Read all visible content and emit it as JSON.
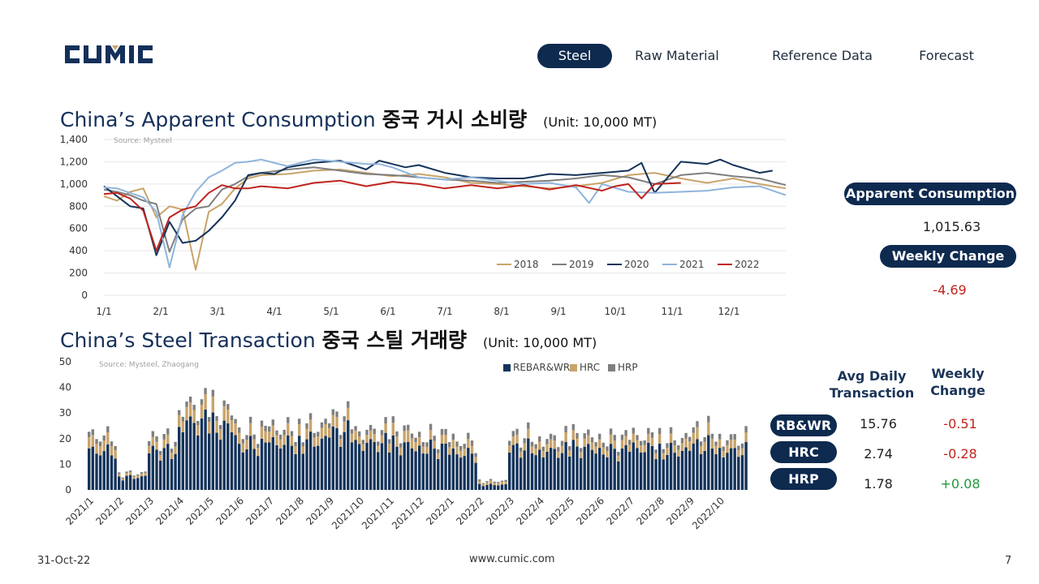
{
  "logo": {
    "text": "CUMIC"
  },
  "nav": {
    "items": [
      {
        "label": "Steel",
        "active": true
      },
      {
        "label": "Raw Material",
        "active": false
      },
      {
        "label": "Reference Data",
        "active": false
      },
      {
        "label": "Forecast",
        "active": false
      }
    ]
  },
  "section1": {
    "title_en": "China’s Apparent Consumption",
    "title_ko": "중국 거시 소비량",
    "unit": "(Unit: 10,000 MT)"
  },
  "section2": {
    "title_en": "China’s Steel Transaction",
    "title_ko": "중국 스틸 거래량",
    "unit": "(Unit: 10,000 MT)"
  },
  "summary1": {
    "consumption_label": "Apparent Consumption",
    "consumption_value": "1,015.63",
    "change_label": "Weekly Change",
    "change_value": "-4.69"
  },
  "summary2": {
    "col_avg": "Avg Daily Transaction",
    "col_change": "Weekly Change",
    "rows": [
      {
        "label": "RB&WR",
        "avg": "15.76",
        "change": "-0.51"
      },
      {
        "label": "HRC",
        "avg": "2.74",
        "change": "-0.28"
      },
      {
        "label": "HRP",
        "avg": "1.78",
        "change": "+0.08"
      }
    ]
  },
  "footer": {
    "date": "31-Oct-22",
    "url": "www.cumic.com",
    "page": "7"
  },
  "colors": {
    "navy": "#0e2a4f",
    "y2018": "#c9a46a",
    "y2019": "#7f7f7f",
    "y2020": "#14335a",
    "y2021": "#8fb4dc",
    "y2022": "#c0231e",
    "rebar": "#14335a",
    "hrc": "#c9a46a",
    "hrp": "#7f7f7f"
  },
  "chart_data": [
    {
      "type": "line",
      "source": "Source: Mysteel",
      "x_ticks": [
        "1/1",
        "2/1",
        "3/1",
        "4/1",
        "5/1",
        "6/1",
        "7/1",
        "8/1",
        "9/1",
        "10/1",
        "11/1",
        "12/1"
      ],
      "y_ticks": [
        "0",
        "200",
        "400",
        "600",
        "800",
        "1,000",
        "1,200",
        "1,400"
      ],
      "ylim": [
        0,
        1400
      ],
      "xlim": [
        0,
        52
      ],
      "legend": "bottom-right",
      "series": [
        {
          "name": "2018",
          "x": [
            0,
            1,
            2,
            3,
            4,
            5,
            6,
            7,
            8,
            9,
            10,
            11,
            12,
            14,
            16,
            18,
            20,
            22,
            24,
            26,
            28,
            30,
            32,
            34,
            36,
            38,
            40,
            42,
            44,
            46,
            48,
            50,
            52
          ],
          "y": [
            890,
            850,
            930,
            960,
            700,
            800,
            770,
            230,
            750,
            820,
            960,
            1050,
            1080,
            1090,
            1120,
            1130,
            1100,
            1070,
            1090,
            1060,
            1010,
            1000,
            980,
            960,
            980,
            1010,
            1080,
            1100,
            1050,
            1010,
            1050,
            1000,
            960
          ]
        },
        {
          "name": "2019",
          "x": [
            0,
            1,
            2,
            3,
            4,
            5,
            6,
            7,
            8,
            9,
            10,
            11,
            12,
            14,
            16,
            18,
            20,
            22,
            24,
            26,
            28,
            30,
            32,
            34,
            36,
            38,
            40,
            42,
            44,
            46,
            48,
            50,
            52
          ],
          "y": [
            950,
            930,
            900,
            850,
            820,
            390,
            680,
            780,
            800,
            950,
            1000,
            1070,
            1100,
            1130,
            1150,
            1120,
            1090,
            1080,
            1060,
            1040,
            1030,
            1010,
            1020,
            1030,
            1050,
            1080,
            1060,
            1000,
            1080,
            1100,
            1070,
            1050,
            990
          ]
        },
        {
          "name": "2020",
          "x": [
            0,
            1,
            2,
            3,
            4,
            5,
            6,
            7,
            8,
            9,
            10,
            11,
            12,
            13,
            14,
            16,
            18,
            20,
            21,
            22,
            23,
            24,
            26,
            28,
            30,
            32,
            34,
            36,
            38,
            40,
            41,
            42,
            44,
            46,
            47,
            48,
            50,
            51
          ],
          "y": [
            980,
            890,
            800,
            780,
            360,
            660,
            470,
            490,
            580,
            700,
            850,
            1080,
            1100,
            1090,
            1150,
            1190,
            1210,
            1130,
            1210,
            1180,
            1150,
            1170,
            1100,
            1060,
            1050,
            1050,
            1090,
            1080,
            1100,
            1120,
            1190,
            920,
            1200,
            1180,
            1220,
            1170,
            1100,
            1120
          ]
        },
        {
          "name": "2021",
          "x": [
            0,
            1,
            2,
            3,
            4,
            5,
            6,
            7,
            8,
            9,
            10,
            11,
            12,
            14,
            16,
            18,
            20,
            21,
            22,
            24,
            26,
            28,
            30,
            32,
            34,
            36,
            37,
            38,
            40,
            42,
            44,
            46,
            48,
            50,
            52
          ],
          "y": [
            970,
            960,
            920,
            880,
            750,
            250,
            720,
            930,
            1060,
            1120,
            1190,
            1200,
            1220,
            1160,
            1220,
            1200,
            1180,
            1180,
            1150,
            1060,
            1040,
            1060,
            1030,
            1000,
            1010,
            970,
            830,
            1000,
            930,
            920,
            930,
            940,
            970,
            980,
            900
          ]
        },
        {
          "name": "2022",
          "x": [
            0,
            1,
            2,
            3,
            4,
            5,
            6,
            7,
            8,
            9,
            10,
            11,
            12,
            14,
            16,
            18,
            20,
            22,
            24,
            26,
            28,
            30,
            32,
            34,
            36,
            38,
            39,
            40,
            41,
            42,
            44
          ],
          "y": [
            910,
            920,
            870,
            760,
            400,
            700,
            770,
            800,
            920,
            990,
            960,
            960,
            980,
            960,
            1010,
            1030,
            980,
            1020,
            1000,
            960,
            990,
            960,
            990,
            950,
            990,
            940,
            980,
            1000,
            870,
            1000,
            1010
          ]
        }
      ]
    },
    {
      "type": "bar",
      "stacked": true,
      "source": "Source: Mysteel, Zhaogang",
      "x_ticks": [
        "2021/1",
        "2021/2",
        "2021/3",
        "2021/4",
        "2021/5",
        "2021/6",
        "2021/7",
        "2021/8",
        "2021/9",
        "2021/10",
        "2021/11",
        "2021/12",
        "2022/1",
        "2022/2",
        "2022/3",
        "2022/4",
        "2022/5",
        "2022/6",
        "2022/7",
        "2022/8",
        "2022/9",
        "2022/10"
      ],
      "y_ticks": [
        "0",
        "10",
        "20",
        "30",
        "40",
        "50"
      ],
      "ylim": [
        0,
        50
      ],
      "legend": "top",
      "monthly_avg": {
        "REBAR&WR": [
          15,
          5,
          15,
          26,
          24,
          17,
          18,
          19,
          22,
          18,
          17,
          16,
          14,
          2,
          16,
          15,
          16,
          15,
          16,
          15,
          17,
          15
        ],
        "HRC": [
          4,
          1,
          3,
          5,
          5,
          4,
          4,
          4,
          4,
          3,
          4,
          3,
          3,
          1,
          3,
          3,
          3,
          3,
          3,
          3,
          4,
          3
        ],
        "HRP": [
          2,
          0.5,
          2,
          2,
          2,
          2,
          2,
          2,
          2,
          2,
          2,
          2,
          2,
          0.5,
          2,
          2,
          2,
          2,
          2,
          2,
          2,
          2
        ]
      },
      "series": [
        {
          "name": "REBAR&WR"
        },
        {
          "name": "HRC"
        },
        {
          "name": "HRP"
        }
      ]
    }
  ]
}
